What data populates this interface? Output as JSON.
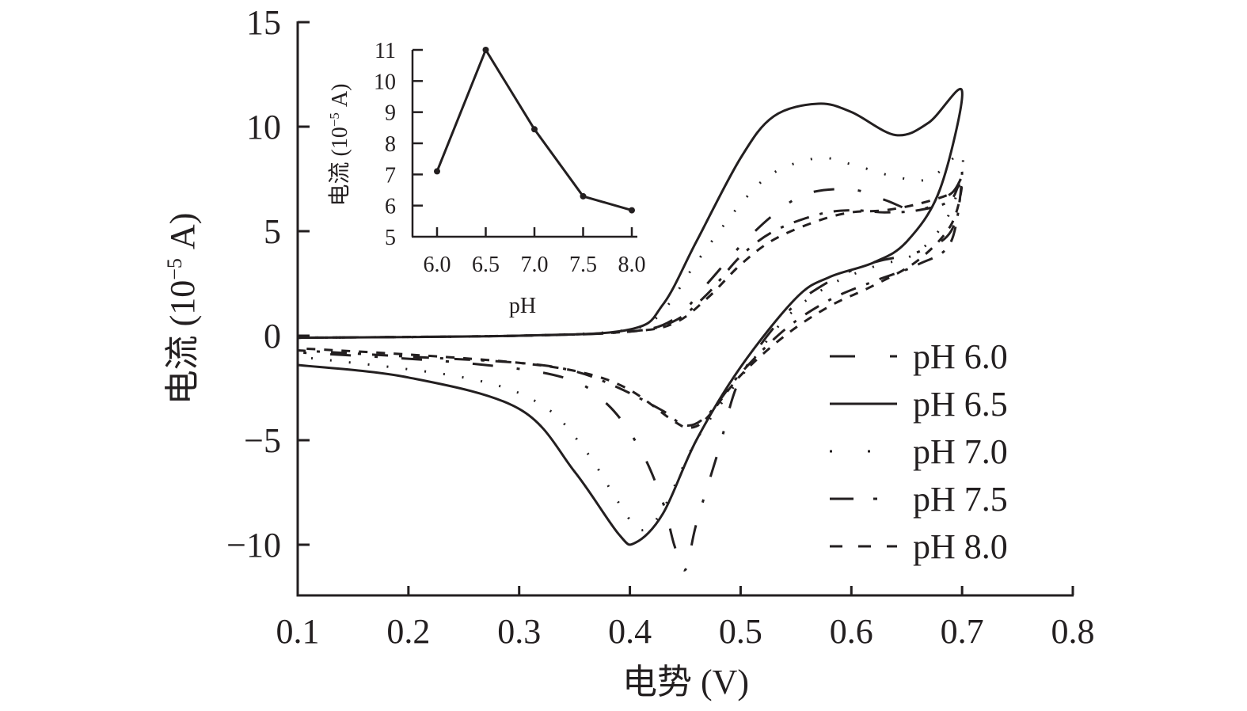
{
  "chart_data": [
    {
      "type": "line",
      "title": "",
      "xlabel": "电势 (V)",
      "ylabel": "电流 (10⁻⁵ A)",
      "ylabel_parts": {
        "prefix": "电流 (10",
        "sup": "−5",
        "suffix": " A)"
      },
      "xlim": [
        0.1,
        0.8
      ],
      "ylim": [
        -12.5,
        15
      ],
      "xticks": [
        0.1,
        0.2,
        0.3,
        0.4,
        0.5,
        0.6,
        0.7,
        0.8
      ],
      "xtick_labels": [
        "0.1",
        "0.2",
        "0.3",
        "0.4",
        "0.5",
        "0.6",
        "0.7",
        "0.8"
      ],
      "yticks": [
        -10,
        -5,
        0,
        5,
        10,
        15
      ],
      "ytick_labels": [
        "−10",
        "−5",
        "0",
        "5",
        "10",
        "15"
      ],
      "grid": false,
      "legend_position": "right",
      "series": [
        {
          "name": "pH 6.0",
          "dash": "long-dash-dot",
          "points": [
            [
              0.1,
              -0.1
            ],
            [
              0.3,
              0.0
            ],
            [
              0.4,
              0.2
            ],
            [
              0.44,
              0.8
            ],
            [
              0.47,
              2.5
            ],
            [
              0.5,
              4.3
            ],
            [
              0.53,
              5.8
            ],
            [
              0.56,
              6.8
            ],
            [
              0.6,
              7.0
            ],
            [
              0.63,
              6.5
            ],
            [
              0.66,
              6.0
            ],
            [
              0.69,
              6.8
            ],
            [
              0.7,
              7.5
            ],
            [
              0.69,
              5.0
            ],
            [
              0.66,
              4.0
            ],
            [
              0.62,
              3.5
            ],
            [
              0.58,
              2.6
            ],
            [
              0.54,
              1.0
            ],
            [
              0.5,
              -2.0
            ],
            [
              0.48,
              -5.5
            ],
            [
              0.46,
              -9.0
            ],
            [
              0.45,
              -11.2
            ],
            [
              0.44,
              -10.0
            ],
            [
              0.43,
              -8.0
            ],
            [
              0.41,
              -5.5
            ],
            [
              0.38,
              -3.3
            ],
            [
              0.34,
              -2.0
            ],
            [
              0.25,
              -1.3
            ],
            [
              0.1,
              -0.8
            ]
          ]
        },
        {
          "name": "pH 6.5",
          "dash": "solid",
          "points": [
            [
              0.1,
              -0.1
            ],
            [
              0.3,
              0.0
            ],
            [
              0.4,
              0.3
            ],
            [
              0.43,
              1.5
            ],
            [
              0.46,
              4.5
            ],
            [
              0.5,
              8.5
            ],
            [
              0.53,
              10.5
            ],
            [
              0.57,
              11.1
            ],
            [
              0.6,
              10.7
            ],
            [
              0.64,
              9.6
            ],
            [
              0.67,
              10.2
            ],
            [
              0.7,
              11.7
            ],
            [
              0.68,
              7.0
            ],
            [
              0.65,
              4.5
            ],
            [
              0.62,
              3.5
            ],
            [
              0.58,
              2.8
            ],
            [
              0.55,
              1.8
            ],
            [
              0.5,
              -1.5
            ],
            [
              0.46,
              -5.0
            ],
            [
              0.43,
              -8.5
            ],
            [
              0.405,
              -9.9
            ],
            [
              0.39,
              -9.5
            ],
            [
              0.35,
              -6.5
            ],
            [
              0.3,
              -3.5
            ],
            [
              0.2,
              -2.0
            ],
            [
              0.1,
              -1.4
            ]
          ]
        },
        {
          "name": "pH 7.0",
          "dash": "dotted",
          "points": [
            [
              0.1,
              -0.1
            ],
            [
              0.3,
              0.0
            ],
            [
              0.4,
              0.3
            ],
            [
              0.43,
              1.2
            ],
            [
              0.46,
              3.5
            ],
            [
              0.5,
              6.3
            ],
            [
              0.53,
              7.8
            ],
            [
              0.57,
              8.5
            ],
            [
              0.6,
              8.2
            ],
            [
              0.64,
              7.6
            ],
            [
              0.67,
              7.5
            ],
            [
              0.7,
              8.7
            ],
            [
              0.69,
              6.0
            ],
            [
              0.66,
              4.0
            ],
            [
              0.62,
              3.3
            ],
            [
              0.58,
              2.4
            ],
            [
              0.54,
              0.8
            ],
            [
              0.5,
              -2.0
            ],
            [
              0.46,
              -5.0
            ],
            [
              0.43,
              -8.3
            ],
            [
              0.41,
              -9.3
            ],
            [
              0.39,
              -8.0
            ],
            [
              0.36,
              -5.5
            ],
            [
              0.32,
              -3.3
            ],
            [
              0.25,
              -2.0
            ],
            [
              0.1,
              -1.0
            ]
          ]
        },
        {
          "name": "pH 7.5",
          "dash": "dash-dot",
          "points": [
            [
              0.1,
              -0.1
            ],
            [
              0.3,
              0.0
            ],
            [
              0.4,
              0.2
            ],
            [
              0.44,
              0.7
            ],
            [
              0.47,
              2.0
            ],
            [
              0.5,
              3.8
            ],
            [
              0.53,
              5.0
            ],
            [
              0.57,
              5.8
            ],
            [
              0.6,
              6.0
            ],
            [
              0.63,
              5.9
            ],
            [
              0.66,
              6.0
            ],
            [
              0.69,
              6.5
            ],
            [
              0.7,
              7.8
            ],
            [
              0.69,
              4.5
            ],
            [
              0.66,
              3.4
            ],
            [
              0.62,
              2.6
            ],
            [
              0.58,
              1.7
            ],
            [
              0.54,
              0.3
            ],
            [
              0.5,
              -1.8
            ],
            [
              0.47,
              -3.8
            ],
            [
              0.45,
              -4.3
            ],
            [
              0.43,
              -3.6
            ],
            [
              0.39,
              -2.5
            ],
            [
              0.35,
              -1.7
            ],
            [
              0.3,
              -1.3
            ],
            [
              0.2,
              -1.0
            ],
            [
              0.1,
              -0.7
            ]
          ]
        },
        {
          "name": "pH 8.0",
          "dash": "short-dash",
          "points": [
            [
              0.1,
              -0.1
            ],
            [
              0.3,
              0.0
            ],
            [
              0.4,
              0.2
            ],
            [
              0.44,
              0.6
            ],
            [
              0.47,
              1.8
            ],
            [
              0.5,
              3.4
            ],
            [
              0.53,
              4.6
            ],
            [
              0.57,
              5.5
            ],
            [
              0.6,
              5.9
            ],
            [
              0.63,
              6.0
            ],
            [
              0.66,
              6.3
            ],
            [
              0.69,
              6.8
            ],
            [
              0.7,
              7.3
            ],
            [
              0.69,
              5.3
            ],
            [
              0.66,
              3.6
            ],
            [
              0.62,
              2.4
            ],
            [
              0.58,
              1.4
            ],
            [
              0.54,
              0.0
            ],
            [
              0.5,
              -1.9
            ],
            [
              0.47,
              -3.9
            ],
            [
              0.455,
              -4.4
            ],
            [
              0.44,
              -4.1
            ],
            [
              0.4,
              -2.6
            ],
            [
              0.36,
              -1.8
            ],
            [
              0.3,
              -1.3
            ],
            [
              0.2,
              -0.9
            ],
            [
              0.1,
              -0.6
            ]
          ]
        }
      ]
    },
    {
      "type": "line",
      "title": "",
      "xlabel": "pH",
      "ylabel": "电流 (10⁻⁵ A)",
      "ylabel_parts": {
        "prefix": "电流 (10",
        "sup": "−5",
        "suffix": " A)"
      },
      "xlim": [
        5.75,
        8.0
      ],
      "ylim": [
        5,
        11
      ],
      "xticks": [
        6.0,
        6.5,
        7.0,
        7.5,
        8.0
      ],
      "xtick_labels": [
        "6.0",
        "6.5",
        "7.0",
        "7.5",
        "8.0"
      ],
      "yticks": [
        5,
        6,
        7,
        8,
        9,
        10,
        11
      ],
      "ytick_labels": [
        "5",
        "6",
        "7",
        "8",
        "9",
        "10",
        "11"
      ],
      "grid": false,
      "legend_position": "none",
      "x": [
        6.0,
        6.5,
        7.0,
        7.5,
        8.0
      ],
      "values": [
        7.1,
        11.0,
        8.45,
        6.3,
        5.85
      ]
    }
  ]
}
